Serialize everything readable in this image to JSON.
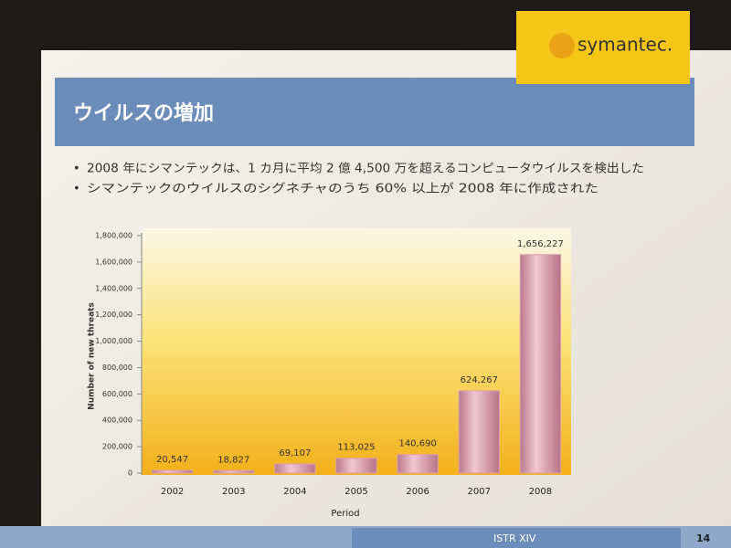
{
  "slide": {
    "title": "ウイルスの増加",
    "bullets": [
      "2008 年にシマンテックは、1 カ月に平均 2 億 4,500 万を超えるコンピュータウイルスを検出した",
      "シマンテックのウイルスのシグネチャのうち 60% 以上が 2008 年に作成された"
    ],
    "logo": "symantec.",
    "footer": "ISTR XIV",
    "page_number": "14"
  },
  "chart_data": {
    "type": "bar",
    "x_label": "Period",
    "y_label": "Number of new threats",
    "categories": [
      "2002",
      "2003",
      "2004",
      "2005",
      "2006",
      "2007",
      "2008"
    ],
    "values": [
      20547,
      18827,
      69107,
      113025,
      140690,
      624267,
      1656227
    ],
    "value_labels": [
      "20,547",
      "18,827",
      "69,107",
      "113,025",
      "140,690",
      "624,267",
      "1,656,227"
    ],
    "color": "#d9a0b0",
    "ylim": [
      0,
      1800000
    ],
    "yticks": [
      0,
      {
        "value": 200000,
        "label": "200,000"
      },
      {
        "value": 400000,
        "label": "400,000"
      },
      {
        "value": 600000,
        "label": "600,000"
      },
      {
        "value": 800000,
        "label": "800,000"
      },
      {
        "value": 1000000,
        "label": "1,000,000"
      },
      {
        "value": 1200000,
        "label": "1,200,000"
      },
      {
        "value": 1400000,
        "label": "1,400,000"
      },
      {
        "value": 1600000,
        "label": "1,600,000"
      },
      {
        "value": 1800000,
        "label": "1,800,000"
      }
    ]
  }
}
